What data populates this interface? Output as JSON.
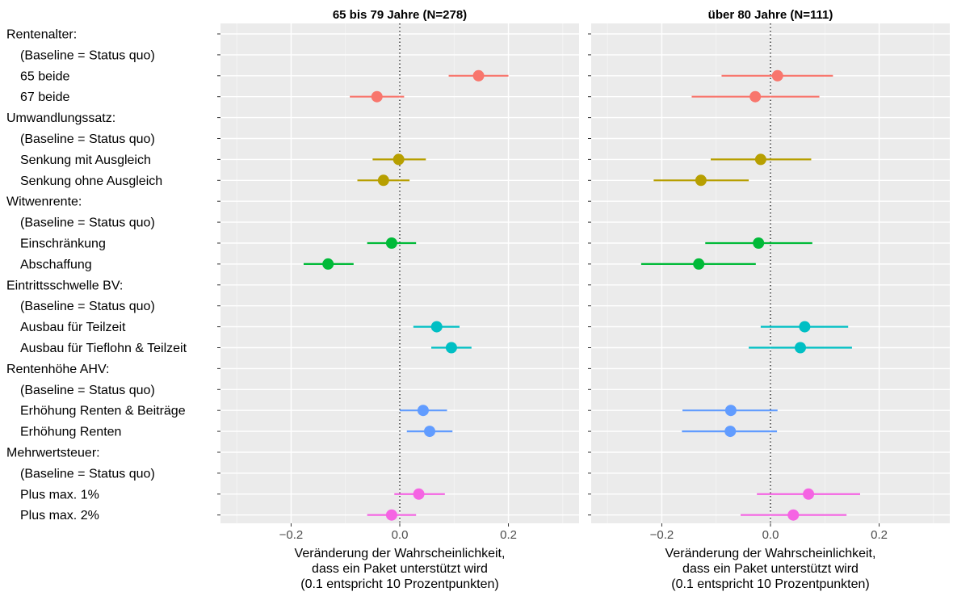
{
  "chart_data": {
    "type": "scatter",
    "subtype": "dot-and-whisker (coefficient plot)",
    "grid": true,
    "legend": "none",
    "xlabel": [
      "Veränderung der Wahrscheinlichkeit,",
      "dass ein Paket unterstützt wird",
      "(0.1 entspricht 10 Prozentpunkten)"
    ],
    "xlim": [
      -0.33,
      0.33
    ],
    "xticks": [
      -0.2,
      0.0,
      0.2
    ],
    "xtick_labels": [
      "−0.2",
      "0.0",
      "0.2"
    ],
    "reference_line": 0,
    "rows": [
      {
        "label": "Rentenalter:",
        "group": null
      },
      {
        "label": "(Baseline = Status quo)",
        "group": null
      },
      {
        "label": "65 beide",
        "group": "Rentenalter"
      },
      {
        "label": "67 beide",
        "group": "Rentenalter"
      },
      {
        "label": "Umwandlungssatz:",
        "group": null
      },
      {
        "label": "(Baseline = Status quo)",
        "group": null
      },
      {
        "label": "Senkung mit Ausgleich",
        "group": "Umwandlungssatz"
      },
      {
        "label": "Senkung ohne Ausgleich",
        "group": "Umwandlungssatz"
      },
      {
        "label": "Witwenrente:",
        "group": null
      },
      {
        "label": "(Baseline = Status quo)",
        "group": null
      },
      {
        "label": "Einschränkung",
        "group": "Witwenrente"
      },
      {
        "label": "Abschaffung",
        "group": "Witwenrente"
      },
      {
        "label": "Eintrittsschwelle BV:",
        "group": null
      },
      {
        "label": "(Baseline = Status quo)",
        "group": null
      },
      {
        "label": "Ausbau für Teilzeit",
        "group": "Eintrittsschwelle BV"
      },
      {
        "label": "Ausbau für Tieflohn & Teilzeit",
        "group": "Eintrittsschwelle BV"
      },
      {
        "label": "Rentenhöhe AHV:",
        "group": null
      },
      {
        "label": "(Baseline = Status quo)",
        "group": null
      },
      {
        "label": "Erhöhung Renten & Beiträge",
        "group": "Rentenhöhe AHV"
      },
      {
        "label": "Erhöhung Renten",
        "group": "Rentenhöhe AHV"
      },
      {
        "label": "Mehrwertsteuer:",
        "group": null
      },
      {
        "label": "(Baseline = Status quo)",
        "group": null
      },
      {
        "label": "Plus max. 1%",
        "group": "Mehrwertsteuer"
      },
      {
        "label": "Plus max. 2%",
        "group": "Mehrwertsteuer"
      }
    ],
    "group_colors": {
      "Rentenalter": "#F8766D",
      "Umwandlungssatz": "#B79F00",
      "Witwenrente": "#00BA38",
      "Eintrittsschwelle BV": "#00BFC4",
      "Rentenhöhe AHV": "#619CFF",
      "Mehrwertsteuer": "#F564E3"
    },
    "panels": [
      {
        "title": "65 bis 79 Jahre (N=278)",
        "points": [
          {
            "row": 2,
            "est": 0.145,
            "lo": 0.09,
            "hi": 0.2
          },
          {
            "row": 3,
            "est": -0.042,
            "lo": -0.092,
            "hi": 0.008
          },
          {
            "row": 6,
            "est": -0.002,
            "lo": -0.05,
            "hi": 0.048
          },
          {
            "row": 7,
            "est": -0.03,
            "lo": -0.078,
            "hi": 0.018
          },
          {
            "row": 10,
            "est": -0.015,
            "lo": -0.06,
            "hi": 0.03
          },
          {
            "row": 11,
            "est": -0.132,
            "lo": -0.177,
            "hi": -0.085
          },
          {
            "row": 14,
            "est": 0.068,
            "lo": 0.025,
            "hi": 0.11
          },
          {
            "row": 15,
            "est": 0.095,
            "lo": 0.058,
            "hi": 0.132
          },
          {
            "row": 18,
            "est": 0.043,
            "lo": 0.0,
            "hi": 0.087
          },
          {
            "row": 19,
            "est": 0.055,
            "lo": 0.013,
            "hi": 0.097
          },
          {
            "row": 22,
            "est": 0.035,
            "lo": -0.01,
            "hi": 0.083
          },
          {
            "row": 23,
            "est": -0.015,
            "lo": -0.06,
            "hi": 0.03
          }
        ]
      },
      {
        "title": "über 80 Jahre (N=111)",
        "points": [
          {
            "row": 2,
            "est": 0.013,
            "lo": -0.09,
            "hi": 0.115
          },
          {
            "row": 3,
            "est": -0.028,
            "lo": -0.145,
            "hi": 0.09
          },
          {
            "row": 6,
            "est": -0.018,
            "lo": -0.11,
            "hi": 0.075
          },
          {
            "row": 7,
            "est": -0.128,
            "lo": -0.215,
            "hi": -0.04
          },
          {
            "row": 10,
            "est": -0.022,
            "lo": -0.12,
            "hi": 0.077
          },
          {
            "row": 11,
            "est": -0.132,
            "lo": -0.238,
            "hi": -0.027
          },
          {
            "row": 14,
            "est": 0.063,
            "lo": -0.018,
            "hi": 0.143
          },
          {
            "row": 15,
            "est": 0.055,
            "lo": -0.04,
            "hi": 0.15
          },
          {
            "row": 18,
            "est": -0.073,
            "lo": -0.162,
            "hi": 0.013
          },
          {
            "row": 19,
            "est": -0.074,
            "lo": -0.163,
            "hi": 0.012
          },
          {
            "row": 22,
            "est": 0.07,
            "lo": -0.025,
            "hi": 0.165
          },
          {
            "row": 23,
            "est": 0.042,
            "lo": -0.055,
            "hi": 0.14
          }
        ]
      }
    ]
  }
}
